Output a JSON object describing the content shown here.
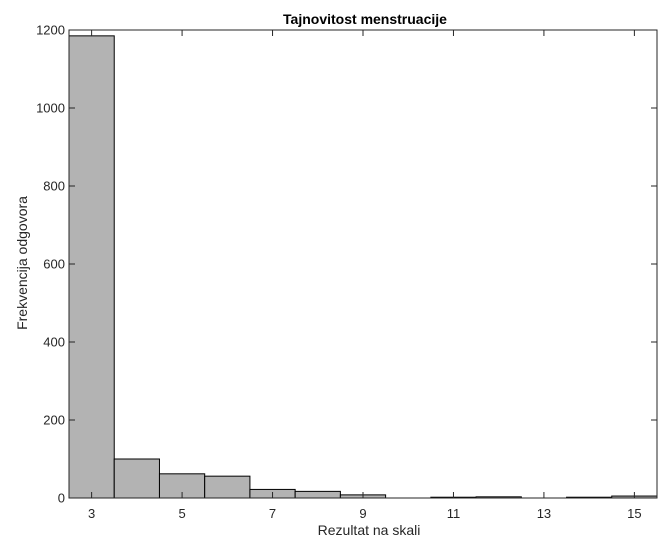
{
  "chart_data": {
    "type": "bar",
    "title": "Tajnovitost menstruacije",
    "xlabel": "Rezultat na skali",
    "ylabel": "Frekvencija odgovora",
    "xlim": [
      2.5,
      15.5
    ],
    "ylim": [
      0,
      1200
    ],
    "x_ticks": [
      3,
      5,
      7,
      9,
      11,
      13,
      15
    ],
    "y_ticks": [
      0,
      200,
      400,
      600,
      800,
      1000,
      1200
    ],
    "bin_width": 1,
    "x": [
      3,
      4,
      5,
      6,
      7,
      8,
      9,
      10,
      11,
      12,
      13,
      14,
      15
    ],
    "values": [
      1185,
      100,
      62,
      56,
      22,
      17,
      8,
      0,
      2,
      3,
      0,
      2,
      5
    ],
    "bar_color": "#b3b3b3",
    "edge_color": "#000000",
    "grid": false,
    "box": true
  }
}
